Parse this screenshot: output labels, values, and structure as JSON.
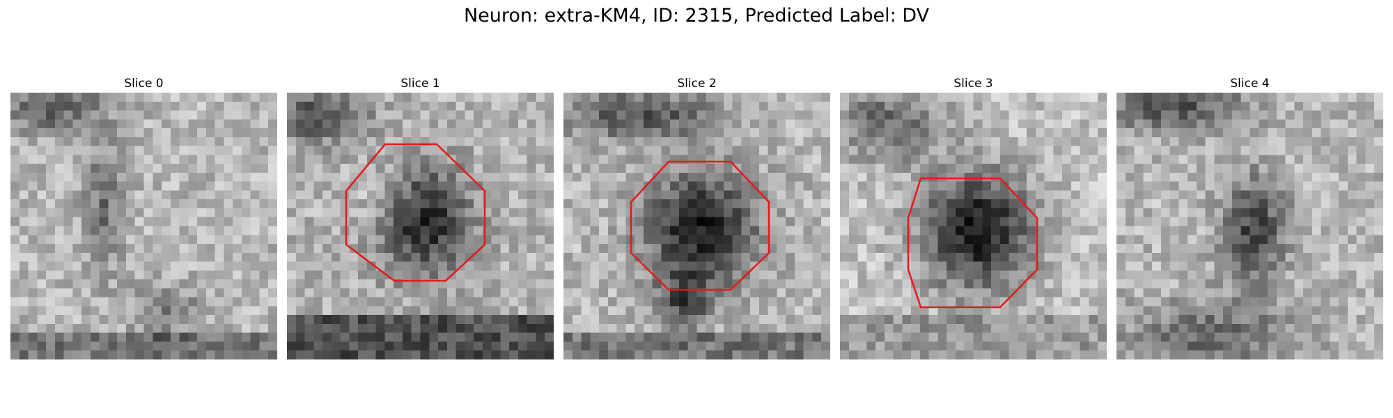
{
  "figure": {
    "title": "Neuron: extra-KM4, ID: 2315, Predicted Label: DV"
  },
  "colors": {
    "background": "#ffffff",
    "outline": "#e41a1c"
  },
  "colormap": "grayscale",
  "slices": [
    {
      "title": "Slice 0",
      "has_outline": false
    },
    {
      "title": "Slice 1",
      "has_outline": true
    },
    {
      "title": "Slice 2",
      "has_outline": true
    },
    {
      "title": "Slice 3",
      "has_outline": true
    },
    {
      "title": "Slice 4",
      "has_outline": false
    }
  ]
}
